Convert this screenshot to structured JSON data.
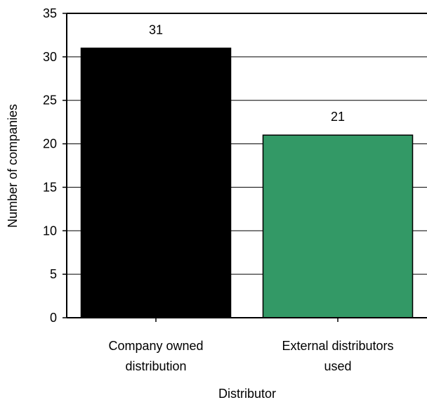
{
  "chart_data": {
    "type": "bar",
    "categories": [
      [
        "Company owned",
        "distribution"
      ],
      [
        "External distributors",
        "used"
      ]
    ],
    "values": [
      31,
      21
    ],
    "data_labels": [
      "31",
      "21"
    ],
    "bar_colors": [
      "#000000",
      "#339966"
    ],
    "title": "",
    "xlabel": "Distributor",
    "ylabel": "Number of companies",
    "ylim": [
      0,
      35
    ],
    "yticks": [
      0,
      5,
      10,
      15,
      20,
      25,
      30,
      35
    ],
    "grid": true,
    "legend": "none"
  }
}
